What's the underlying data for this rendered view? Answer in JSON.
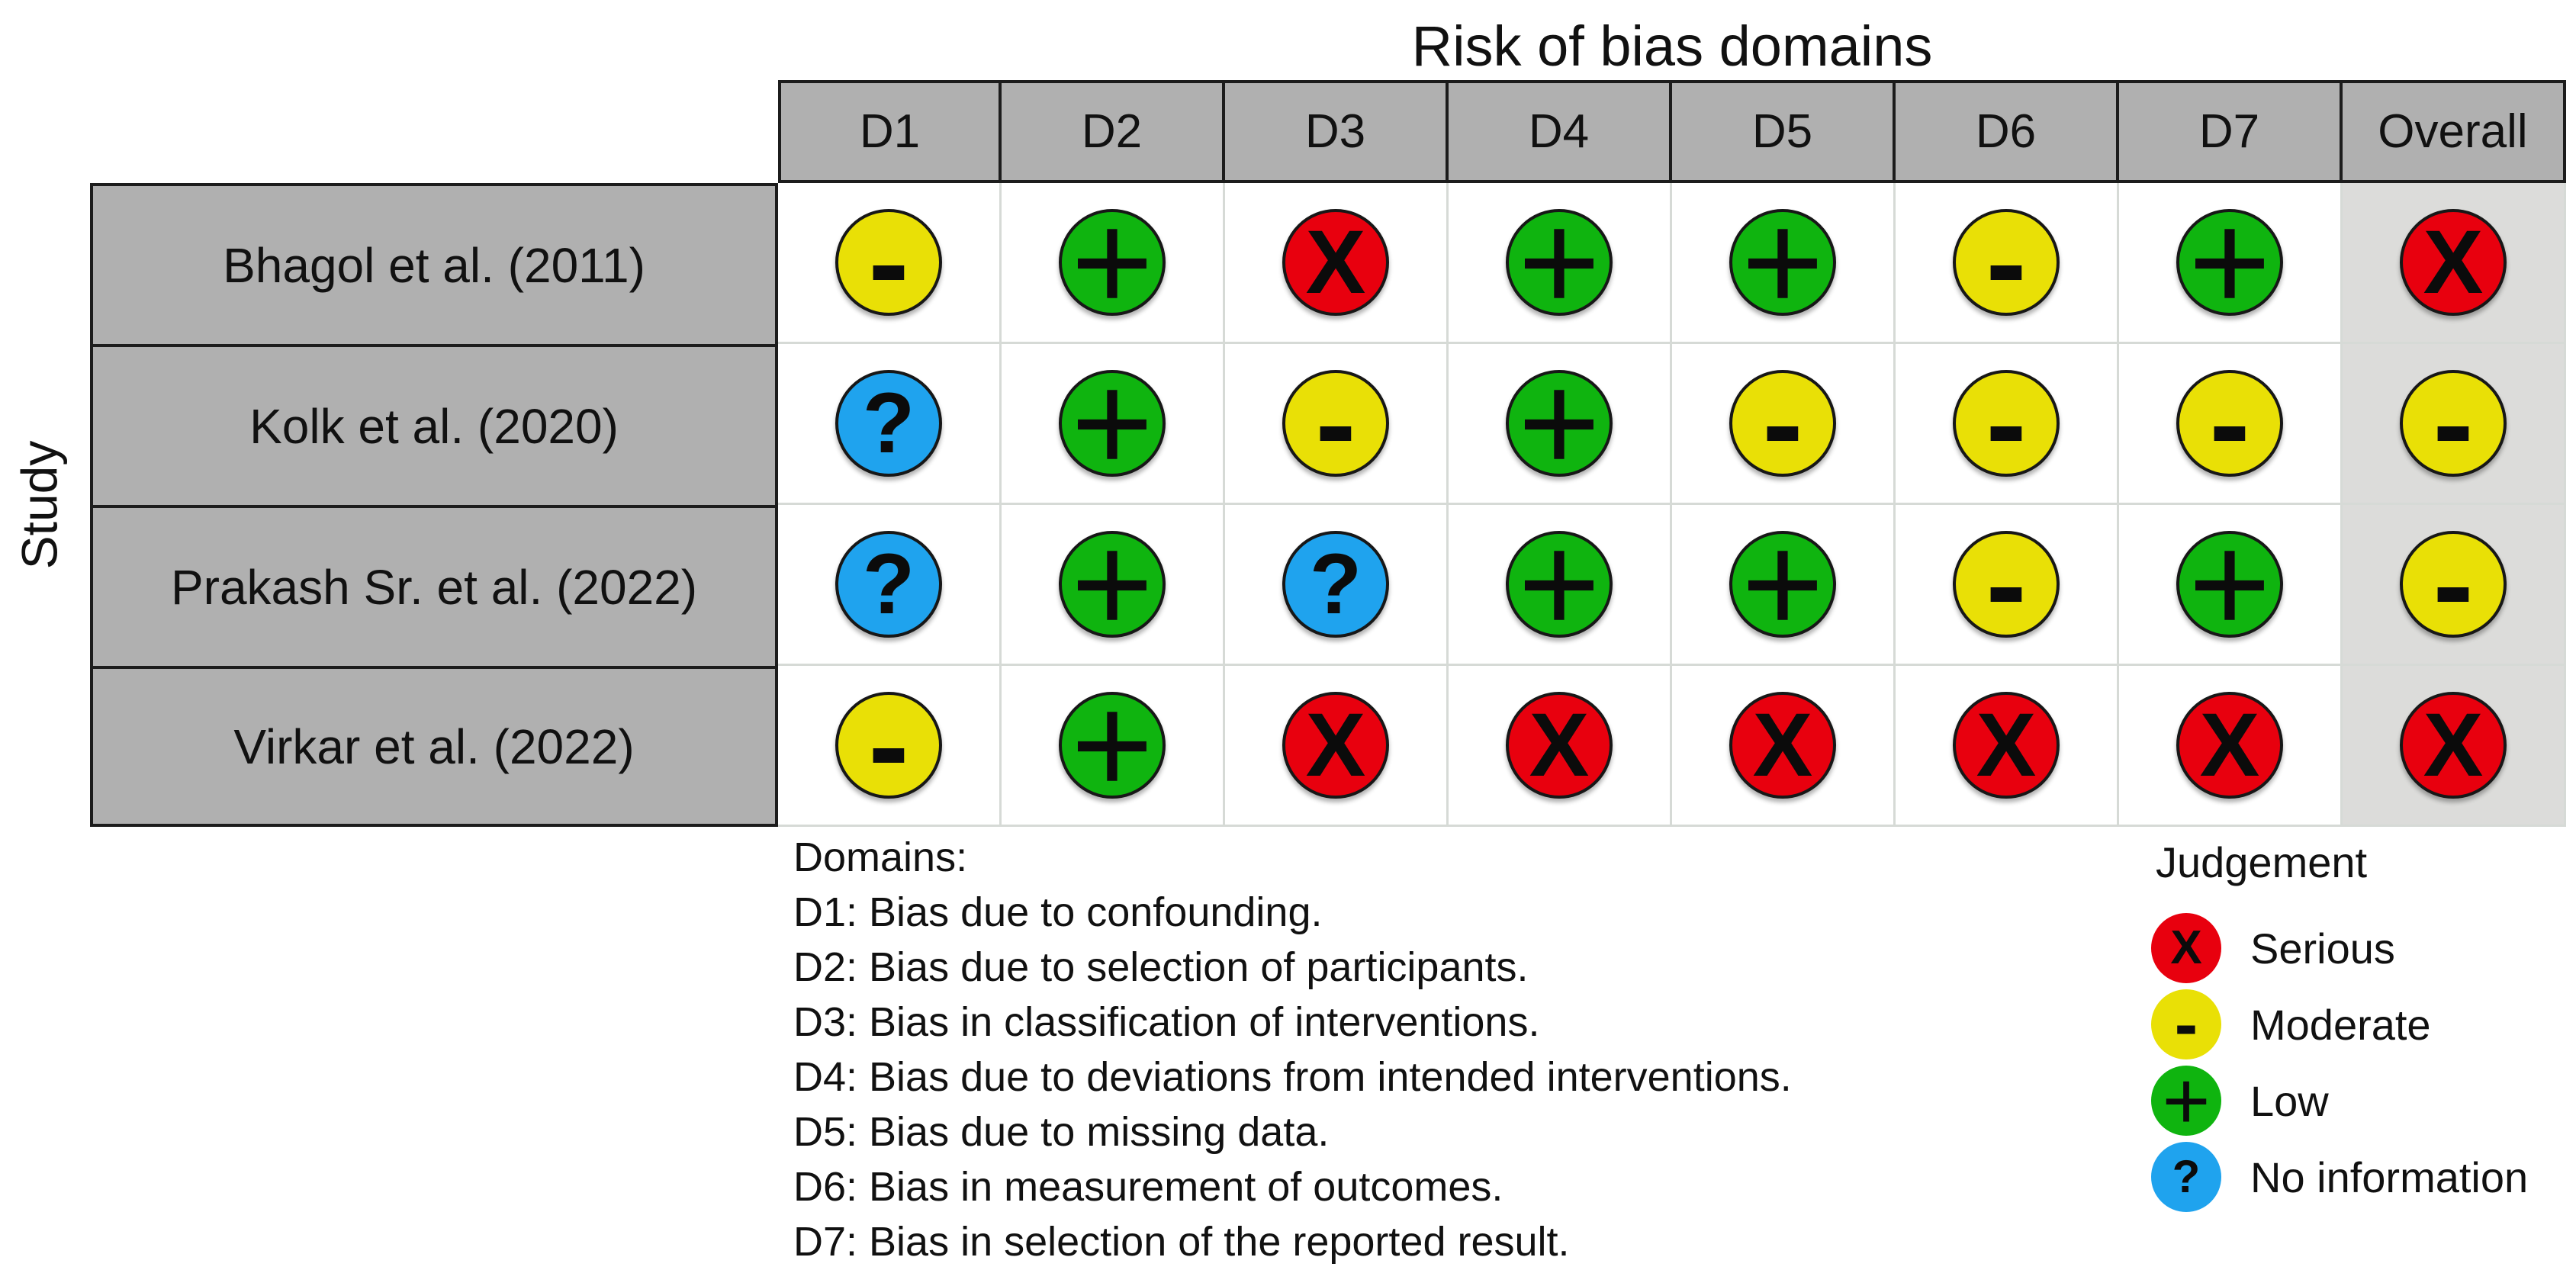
{
  "chart_data": {
    "type": "heatmap",
    "title": "Risk of bias domains",
    "ylabel": "Study",
    "columns": [
      "D1",
      "D2",
      "D3",
      "D4",
      "D5",
      "D6",
      "D7",
      "Overall"
    ],
    "rows": [
      {
        "study": "Bhagol et al. (2011)",
        "judgements": [
          "moderate",
          "low",
          "serious",
          "low",
          "low",
          "moderate",
          "low",
          "serious"
        ]
      },
      {
        "study": "Kolk et al. (2020)",
        "judgements": [
          "no_information",
          "low",
          "moderate",
          "low",
          "moderate",
          "moderate",
          "moderate",
          "moderate"
        ]
      },
      {
        "study": "Prakash Sr. et al. (2022)",
        "judgements": [
          "no_information",
          "low",
          "no_information",
          "low",
          "low",
          "moderate",
          "low",
          "moderate"
        ]
      },
      {
        "study": "Virkar et al. (2022)",
        "judgements": [
          "moderate",
          "low",
          "serious",
          "serious",
          "serious",
          "serious",
          "serious",
          "serious"
        ]
      }
    ],
    "judgements": {
      "serious": {
        "symbol": "X",
        "label": "Serious",
        "color": "#e8000e"
      },
      "moderate": {
        "symbol": "-",
        "label": "Moderate",
        "color": "#e9e006"
      },
      "low": {
        "symbol": "+",
        "label": "Low",
        "color": "#0fb40f"
      },
      "no_information": {
        "symbol": "?",
        "label": "No information",
        "color": "#1fa3ee"
      }
    },
    "legend_title": "Judgement",
    "legend_keys": [
      "serious",
      "moderate",
      "low",
      "no_information"
    ],
    "notes_heading": "Domains:",
    "notes": [
      "D1: Bias due to confounding.",
      "D2: Bias due to selection of participants.",
      "D3: Bias in classification of interventions.",
      "D4: Bias due to deviations from intended interventions.",
      "D5: Bias due to missing data.",
      "D6: Bias in measurement of outcomes.",
      "D7: Bias in selection of the reported result."
    ],
    "layout": {
      "header_fill": "#b0b0b0",
      "study_fill": "#b0b0b0",
      "overall_fill": "#dcdcda",
      "grid_line": "#d6dad6",
      "frame_line": "#1c1c1c",
      "legend_position": "bottom-right",
      "notes_position": "bottom-left"
    }
  }
}
